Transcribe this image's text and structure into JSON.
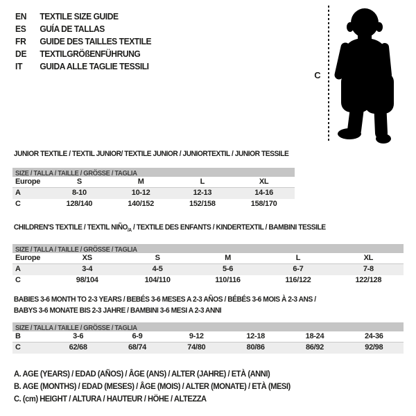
{
  "colors": {
    "ink": "#1d1d1b",
    "header_bar": "#c5c5c5",
    "header_text": "#3f3f3f",
    "shaded_row": "#ededed",
    "background": "#ffffff"
  },
  "languages": [
    {
      "code": "EN",
      "label": "TEXTILE SIZE GUIDE"
    },
    {
      "code": "ES",
      "label": "GUÍA DE TALLAS"
    },
    {
      "code": "FR",
      "label": "GUIDE DES TAILLES TEXTILE"
    },
    {
      "code": "DE",
      "label": "TEXTILGRÖßENFÜHRUNG"
    },
    {
      "code": "IT",
      "label": "GUIDA ALLE TAGLIE TESSILI"
    }
  ],
  "figure": {
    "measure_label": "C",
    "silhouette": "baby-toddler-standing"
  },
  "tables": [
    {
      "id": "junior",
      "title_lines": [
        {
          "text": "JUNIOR TEXTILE / TEXTIL JUNIOR/ TEXTILE JUNIOR / JUNIORTEXTIL / JUNIOR TESSILE"
        }
      ],
      "size_header": "SIZE / TALLA / TAILLE / GRÖSSE / TAGLIA",
      "rows": [
        {
          "label": "Europe",
          "values": [
            "S",
            "M",
            "L",
            "XL"
          ]
        },
        {
          "label": "A",
          "shaded": true,
          "values": [
            "8-10",
            "10-12",
            "12-13",
            "14-16"
          ]
        },
        {
          "label": "C",
          "values": [
            "128/140",
            "140/152",
            "152/158",
            "158/170"
          ]
        }
      ]
    },
    {
      "id": "children",
      "title_lines": [
        {
          "text": "CHILDREN'S TEXTILE / TEXTIL NIÑO",
          "sub": "/A",
          "text_after": " / TEXTILE DES ENFANTS / KINDERTEXTIL / BAMBINI TESSILE"
        }
      ],
      "size_header": "SIZE / TALLA / TAILLE / GRÖSSE / TAGLIA",
      "rows": [
        {
          "label": "Europe",
          "values": [
            "XS",
            "S",
            "M",
            "L",
            "XL"
          ]
        },
        {
          "label": "A",
          "shaded": true,
          "values": [
            "3-4",
            "4-5",
            "5-6",
            "6-7",
            "7-8"
          ]
        },
        {
          "label": "C",
          "values": [
            "98/104",
            "104/110",
            "110/116",
            "116/122",
            "122/128"
          ]
        }
      ]
    },
    {
      "id": "babies",
      "title_lines": [
        {
          "text": "BABIES 3-6 MONTH TO 2-3 YEARS / BEBÉS 3-6 MESES A 2-3 AÑOS / BÉBÉS 3-6 MOIS À 2-3 ANS /"
        },
        {
          "text": "BABYS 3-6 MONATE BIS 2-3 JAHRE / BAMBINI 3-6 MESI A 2-3 ANNI"
        }
      ],
      "size_header": "SIZE / TALLA / TAILLE / GRÖSSE / TAGLIA",
      "rows": [
        {
          "label": "B",
          "values": [
            "3-6",
            "6-9",
            "9-12",
            "12-18",
            "18-24",
            "24-36"
          ]
        },
        {
          "label": "C",
          "shaded": true,
          "values": [
            "62/68",
            "68/74",
            "74/80",
            "80/86",
            "86/92",
            "92/98"
          ]
        }
      ]
    }
  ],
  "legend": [
    "A. AGE (YEARS) / EDAD (AÑOS) / ÂGE (ANS) / ALTER (JAHRE) / ETÀ (ANNI)",
    "B. AGE (MONTHS) / EDAD (MESES) / ÂGE (MOIS) / ALTER (MONATE) / ETÀ (MESI)",
    "C. (cm) HEIGHT / ALTURA / HAUTEUR / HÖHE / ALTEZZA"
  ]
}
